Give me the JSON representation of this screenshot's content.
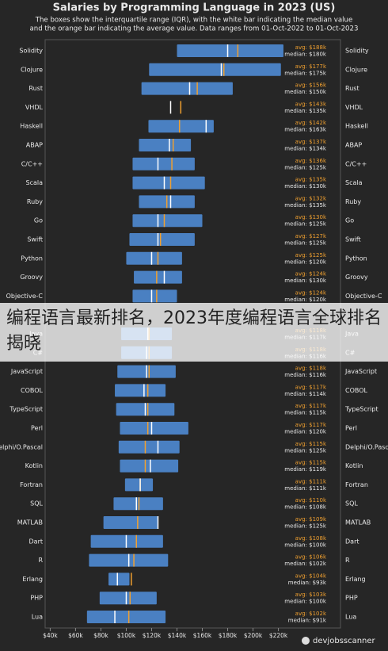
{
  "chart_data": {
    "type": "box",
    "title": "Salaries by Programming Language in 2023 (US)",
    "subtitle": [
      "The boxes show the interquartile range (IQR), with the white bar indicating the median value",
      "and the orange bar indicating the average value. Data ranges from 01-Oct-2022 to 01-Oct-2023"
    ],
    "source": "devjobsscanner",
    "overlay_caption": "编程语言最新排名，2023年度编程语言全球排名揭晓",
    "categories": [
      "Solidity",
      "Clojure",
      "Rust",
      "VHDL",
      "Haskell",
      "ABAP",
      "C/C++",
      "Scala",
      "Ruby",
      "Go",
      "Swift",
      "Python",
      "Groovy",
      "Objective-C",
      null,
      "Java",
      "C#",
      "JavaScript",
      "COBOL",
      "TypeScript",
      "Perl",
      "Delphi/O.Pascal",
      "Kotlin",
      "Fortran",
      "SQL",
      "MATLAB",
      "Dart",
      "R",
      "Erlang",
      "PHP",
      "Lua"
    ],
    "q1": [
      140,
      118,
      112,
      null,
      117.5,
      110,
      105,
      105,
      110,
      105,
      102.5,
      100,
      106,
      105,
      null,
      96,
      96,
      93,
      91,
      92,
      95,
      94,
      95,
      99,
      90,
      82,
      72,
      70.6,
      86,
      79,
      69
    ],
    "q3": [
      224,
      222,
      184,
      null,
      169,
      151,
      154,
      162,
      154,
      160,
      154,
      144,
      144,
      140,
      null,
      136,
      136,
      139,
      131,
      138,
      149,
      142,
      141,
      121,
      129,
      125,
      129,
      133,
      102.5,
      124,
      131
    ],
    "median": [
      180,
      175,
      150,
      135,
      163,
      134,
      125,
      130,
      135,
      125,
      125,
      120,
      130,
      120,
      null,
      117,
      116,
      116,
      114,
      115,
      120,
      125,
      119,
      111,
      108,
      125,
      100,
      102,
      93,
      100,
      91
    ],
    "mean": [
      188,
      177,
      156,
      143,
      142,
      137,
      136,
      135,
      132,
      130,
      127,
      125,
      124,
      124,
      null,
      118,
      118,
      118,
      117,
      117,
      117,
      115,
      115,
      111,
      110,
      109,
      108,
      106,
      104,
      103,
      102
    ],
    "median_labels": [
      "median: $180k",
      "median: $175k",
      "median: $150k",
      "median: $135k",
      "median: $163k",
      "median: $134k",
      "median: $125k",
      "median: $130k",
      "median: $135k",
      "median: $125k",
      "median: $125k",
      "median: $120k",
      "median: $130k",
      "median: $120k",
      null,
      "median: $117k",
      "median: $116k",
      "median: $116k",
      "median: $114k",
      "median: $115k",
      "median: $120k",
      "median: $125k",
      "median: $119k",
      "median: $111k",
      "median: $108k",
      "median: $125k",
      "median: $100k",
      "median: $102k",
      "median: $93k",
      "median: $100k",
      "median: $91k"
    ],
    "mean_labels": [
      "avg: $188k",
      "avg: $177k",
      "avg: $156k",
      "avg: $143k",
      "avg: $142k",
      "avg: $137k",
      "avg: $136k",
      "avg: $135k",
      "avg: $132k",
      "avg: $130k",
      "avg: $127k",
      "avg: $125k",
      "avg: $124k",
      "avg: $124k",
      null,
      "avg: $118k",
      "avg: $118k",
      "avg: $118k",
      "avg: $117k",
      "avg: $117k",
      "avg: $117k",
      "avg: $115k",
      "avg: $115k",
      "avg: $111k",
      "avg: $110k",
      "avg: $109k",
      "avg: $108k",
      "avg: $106k",
      "avg: $104k",
      "avg: $103k",
      "avg: $102k"
    ],
    "box_color": "#4a80c2",
    "median_color": "#ffffff",
    "mean_color": "#f0a030",
    "xlim": [
      36,
      269
    ],
    "xticks": [
      {
        "value": 40,
        "label": "$40k"
      },
      {
        "value": 60,
        "label": "$60k"
      },
      {
        "value": 80,
        "label": "$80k"
      },
      {
        "value": 100,
        "label": "$100k"
      },
      {
        "value": 120,
        "label": "$120k"
      },
      {
        "value": 140,
        "label": "$140k"
      },
      {
        "value": 160,
        "label": "$160k"
      },
      {
        "value": 180,
        "label": "$180k"
      },
      {
        "value": 200,
        "label": "$200k"
      },
      {
        "value": 220,
        "label": "$220k"
      }
    ]
  }
}
